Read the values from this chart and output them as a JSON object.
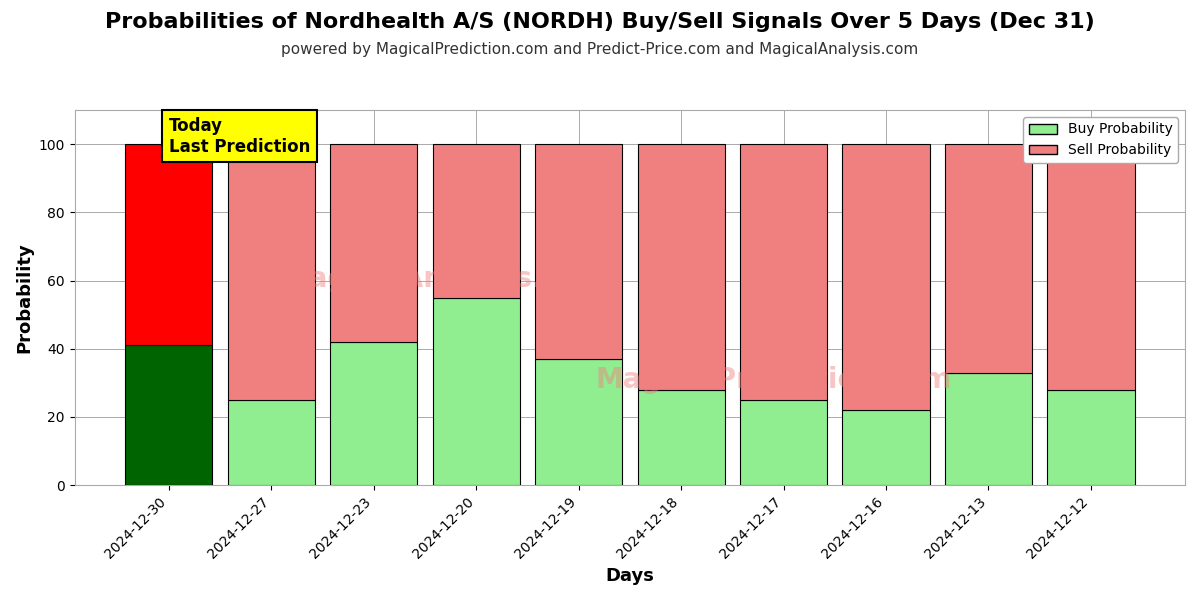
{
  "title": "Probabilities of Nordhealth A/S (NORDH) Buy/Sell Signals Over 5 Days (Dec 31)",
  "subtitle": "powered by MagicalPrediction.com and Predict-Price.com and MagicalAnalysis.com",
  "xlabel": "Days",
  "ylabel": "Probability",
  "dates": [
    "2024-12-30",
    "2024-12-27",
    "2024-12-23",
    "2024-12-20",
    "2024-12-19",
    "2024-12-18",
    "2024-12-17",
    "2024-12-16",
    "2024-12-13",
    "2024-12-12"
  ],
  "buy_values": [
    41,
    25,
    42,
    55,
    37,
    28,
    25,
    22,
    33,
    28
  ],
  "sell_values": [
    59,
    75,
    58,
    45,
    63,
    72,
    75,
    78,
    67,
    72
  ],
  "today_buy_color": "#006400",
  "today_sell_color": "#ff0000",
  "other_buy_color": "#90EE90",
  "other_sell_color": "#F08080",
  "bar_edge_color": "#000000",
  "ylim": [
    0,
    110
  ],
  "yticks": [
    0,
    20,
    40,
    60,
    80,
    100
  ],
  "dashed_line_y": 110,
  "legend_buy_label": "Buy Probability",
  "legend_sell_label": "Sell Probability",
  "today_label_line1": "Today",
  "today_label_line2": "Last Prediction",
  "today_box_facecolor": "#FFFF00",
  "today_box_edgecolor": "#000000",
  "fig_width": 12,
  "fig_height": 6,
  "title_fontsize": 16,
  "subtitle_fontsize": 11,
  "axis_label_fontsize": 13,
  "tick_fontsize": 10,
  "legend_fontsize": 10,
  "annotation_fontsize": 12,
  "background_color": "#ffffff",
  "grid_color": "#aaaaaa",
  "bar_width": 0.85
}
